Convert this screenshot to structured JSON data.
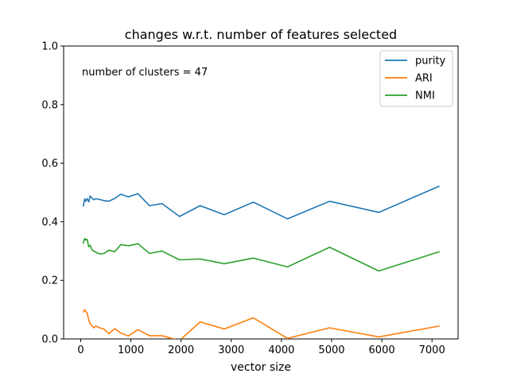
{
  "chart_data": {
    "type": "line",
    "title": "changes w.r.t. number of features selected",
    "xlabel": "vector size",
    "ylabel": "",
    "xlim": [
      -340,
      7520
    ],
    "ylim": [
      0.0,
      1.0
    ],
    "xticks": [
      0,
      1000,
      2000,
      3000,
      4000,
      5000,
      6000,
      7000
    ],
    "yticks": [
      0.0,
      0.2,
      0.4,
      0.6,
      0.8,
      1.0
    ],
    "xtick_labels": [
      "0",
      "1000",
      "2000",
      "3000",
      "4000",
      "5000",
      "6000",
      "7000"
    ],
    "ytick_labels": [
      "0.0",
      "0.2",
      "0.4",
      "0.6",
      "0.8",
      "1.0"
    ],
    "annotation": "number of clusters = 47",
    "grid": false,
    "legend_position": "top-right",
    "x": [
      50,
      80,
      100,
      130,
      160,
      190,
      220,
      260,
      300,
      380,
      470,
      560,
      680,
      800,
      950,
      1140,
      1370,
      1620,
      1970,
      2380,
      2860,
      3440,
      4120,
      4960,
      5940,
      7150
    ],
    "series": [
      {
        "name": "purity",
        "color": "#1f77b4",
        "values": [
          0.452,
          0.478,
          0.47,
          0.479,
          0.468,
          0.488,
          0.482,
          0.475,
          0.479,
          0.476,
          0.472,
          0.47,
          0.48,
          0.494,
          0.485,
          0.496,
          0.455,
          0.462,
          0.418,
          0.455,
          0.424,
          0.467,
          0.41,
          0.47,
          0.432,
          0.522
        ]
      },
      {
        "name": "ARI",
        "color": "#ff7f0e",
        "values": [
          0.091,
          0.1,
          0.094,
          0.088,
          0.065,
          0.052,
          0.045,
          0.038,
          0.044,
          0.038,
          0.033,
          0.018,
          0.035,
          0.02,
          0.01,
          0.032,
          0.011,
          0.011,
          -0.005,
          0.058,
          0.034,
          0.072,
          0.002,
          0.038,
          0.007,
          0.044
        ]
      },
      {
        "name": "NMI",
        "color": "#2ca02c",
        "values": [
          0.326,
          0.343,
          0.338,
          0.34,
          0.315,
          0.32,
          0.305,
          0.3,
          0.296,
          0.29,
          0.292,
          0.303,
          0.298,
          0.322,
          0.318,
          0.325,
          0.292,
          0.3,
          0.27,
          0.273,
          0.257,
          0.276,
          0.246,
          0.313,
          0.232,
          0.298
        ]
      }
    ]
  }
}
